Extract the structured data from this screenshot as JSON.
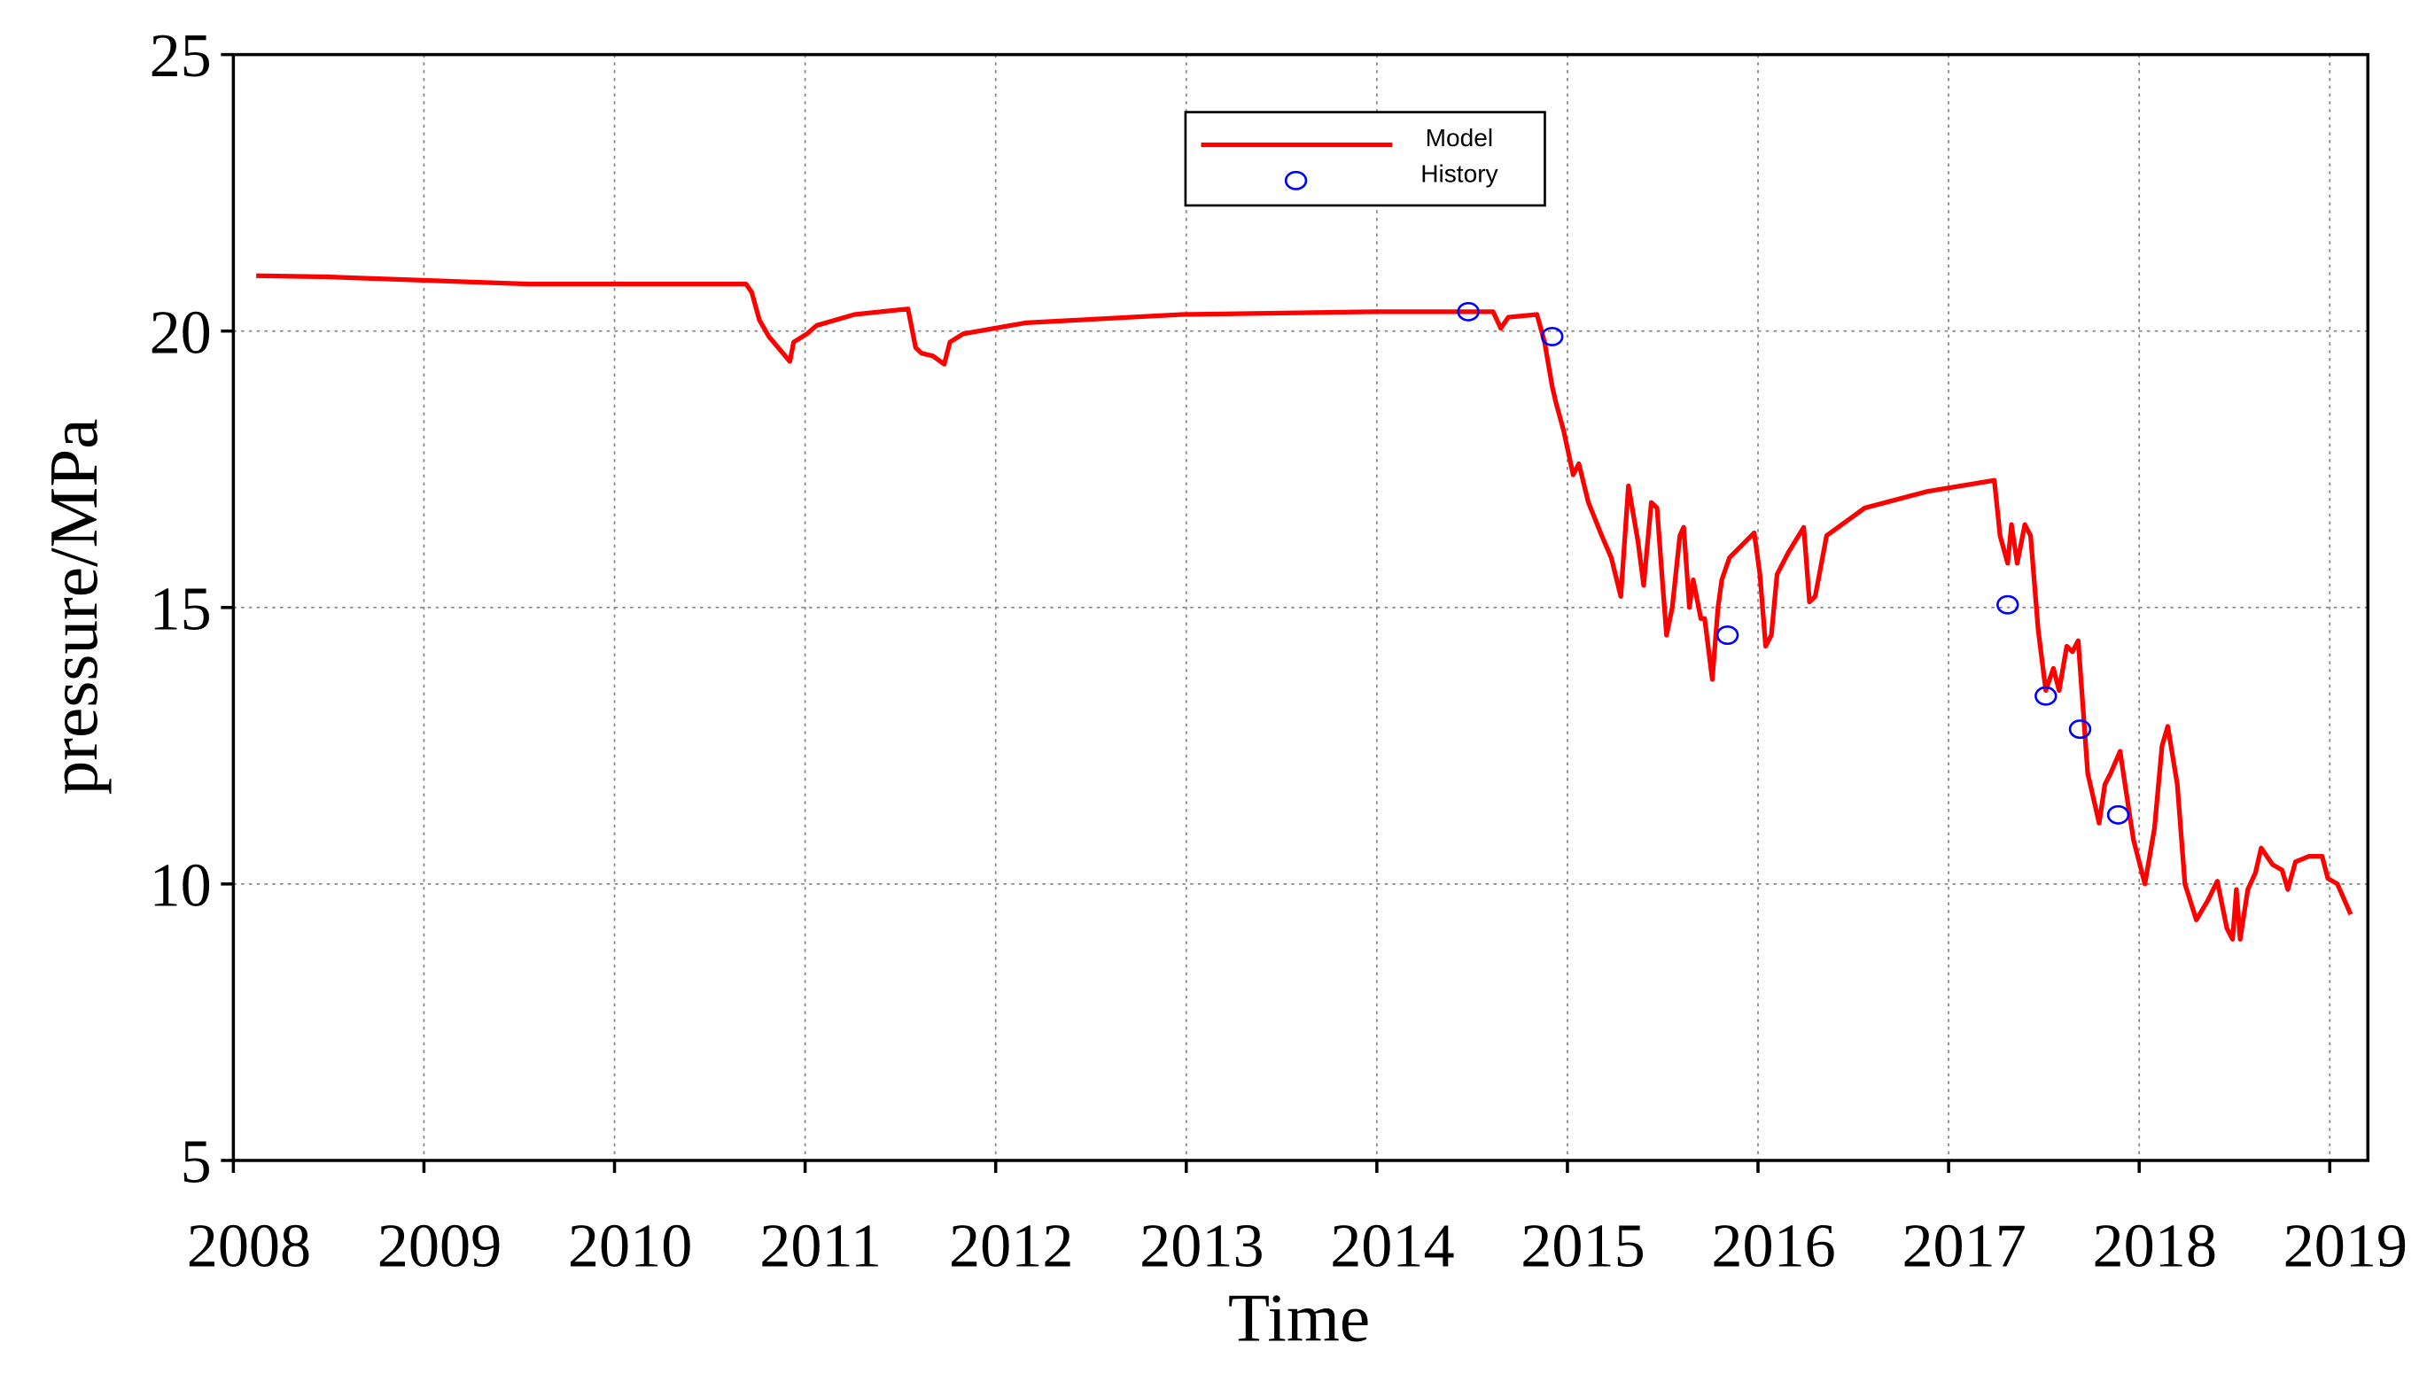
{
  "chart_data": {
    "type": "line",
    "x_label": "Time",
    "y_label": "pressure/MPa",
    "xlim": [
      2008,
      2019.2
    ],
    "xticks": [
      2008,
      2009,
      2010,
      2011,
      2012,
      2013,
      2014,
      2015,
      2016,
      2017,
      2018,
      2019
    ],
    "ylim": [
      5,
      25
    ],
    "yticks": [
      5,
      10,
      15,
      20,
      25
    ],
    "grid": true,
    "legend": "top",
    "series": [
      {
        "name": "Model",
        "color": "#ff0000",
        "style": "line",
        "x": [
          2008.12,
          2008.49,
          2009.55,
          2010.69,
          2010.72,
          2010.76,
          2010.81,
          2010.92,
          2010.94,
          2011.01,
          2011.06,
          2011.26,
          2011.54,
          2011.58,
          2011.61,
          2011.67,
          2011.73,
          2011.76,
          2011.83,
          2012.16,
          2012.98,
          2014.0,
          2014.61,
          2014.65,
          2014.69,
          2014.84,
          2014.88,
          2014.92,
          2014.94,
          2014.98,
          2015.03,
          2015.06,
          2015.11,
          2015.18,
          2015.23,
          2015.28,
          2015.32,
          2015.37,
          2015.4,
          2015.44,
          2015.47,
          2015.5,
          2015.52,
          2015.55,
          2015.59,
          2015.61,
          2015.64,
          2015.66,
          2015.7,
          2015.72,
          2015.76,
          2015.79,
          2015.81,
          2015.85,
          2015.98,
          2016.01,
          2016.04,
          2016.07,
          2016.1,
          2016.16,
          2016.24,
          2016.27,
          2016.3,
          2016.36,
          2016.56,
          2016.89,
          2017.24,
          2017.27,
          2017.31,
          2017.33,
          2017.36,
          2017.4,
          2017.43,
          2017.47,
          2017.51,
          2017.55,
          2017.58,
          2017.62,
          2017.65,
          2017.68,
          2017.73,
          2017.79,
          2017.82,
          2017.85,
          2017.9,
          2017.93,
          2017.97,
          2018.03,
          2018.08,
          2018.12,
          2018.15,
          2018.2,
          2018.24,
          2018.3,
          2018.36,
          2018.41,
          2018.46,
          2018.49,
          2018.51,
          2018.53,
          2018.57,
          2018.61,
          2018.64,
          2018.7,
          2018.75,
          2018.78,
          2018.82,
          2018.89,
          2018.96,
          2018.99,
          2019.04,
          2019.11
        ],
        "values": [
          21.0,
          20.98,
          20.85,
          20.85,
          20.7,
          20.2,
          19.9,
          19.45,
          19.8,
          19.95,
          20.1,
          20.3,
          20.4,
          19.7,
          19.6,
          19.55,
          19.4,
          19.8,
          19.95,
          20.15,
          20.3,
          20.35,
          20.35,
          20.05,
          20.25,
          20.3,
          19.8,
          19.0,
          18.7,
          18.2,
          17.4,
          17.6,
          16.9,
          16.3,
          15.9,
          15.2,
          17.2,
          16.2,
          15.4,
          16.9,
          16.8,
          15.4,
          14.5,
          15.0,
          16.3,
          16.45,
          15.0,
          15.5,
          14.8,
          14.8,
          13.7,
          15.0,
          15.5,
          15.9,
          16.35,
          15.6,
          14.3,
          14.5,
          15.6,
          16.0,
          16.45,
          15.1,
          15.2,
          16.3,
          16.8,
          17.1,
          17.3,
          16.3,
          15.8,
          16.5,
          15.8,
          16.5,
          16.3,
          14.6,
          13.5,
          13.9,
          13.5,
          14.3,
          14.2,
          14.4,
          12.0,
          11.1,
          11.8,
          12.0,
          12.4,
          11.7,
          10.8,
          10.0,
          11.0,
          12.5,
          12.85,
          11.8,
          10.0,
          9.35,
          9.7,
          10.05,
          9.2,
          9.0,
          9.9,
          9.0,
          9.9,
          10.2,
          10.65,
          10.35,
          10.25,
          9.9,
          10.4,
          10.5,
          10.5,
          10.1,
          10.0,
          9.45
        ]
      },
      {
        "name": "History",
        "color": "#0000ff",
        "style": "marker",
        "x": [
          2014.48,
          2014.92,
          2015.84,
          2017.31,
          2017.51,
          2017.69,
          2017.89
        ],
        "values": [
          20.35,
          19.9,
          14.5,
          15.05,
          13.4,
          12.8,
          11.25
        ]
      }
    ]
  }
}
